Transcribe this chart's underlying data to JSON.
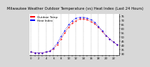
{
  "title": "Milwaukee Weather Outdoor Temperature (vs) Heat Index (Last 24 Hours)",
  "legend_temp": "Outdoor Temp",
  "legend_heat": "Heat Index",
  "background_color": "#d8d8d8",
  "plot_bg": "#ffffff",
  "temp_color": "#ff0000",
  "heat_color": "#0000ff",
  "ylim": [
    28,
    78
  ],
  "ytick_vals": [
    30,
    35,
    40,
    45,
    50,
    55,
    60,
    65,
    70,
    75
  ],
  "ytick_labels": [
    "30",
    "35",
    "40",
    "45",
    "50",
    "55",
    "60",
    "65",
    "70",
    "75"
  ],
  "hours": [
    0,
    1,
    2,
    3,
    4,
    5,
    6,
    7,
    8,
    9,
    10,
    11,
    12,
    13,
    14,
    15,
    16,
    17,
    18,
    19,
    20,
    21,
    22,
    23
  ],
  "temp_vals": [
    32,
    31,
    31,
    31,
    32,
    33,
    36,
    41,
    48,
    55,
    62,
    67,
    70,
    72,
    72,
    71,
    69,
    66,
    62,
    57,
    52,
    48,
    44,
    41
  ],
  "heat_vals": [
    32,
    31,
    31,
    31,
    32,
    33,
    37,
    43,
    51,
    58,
    65,
    70,
    73,
    74,
    74,
    73,
    71,
    68,
    63,
    58,
    52,
    48,
    44,
    41
  ],
  "grid_hours": [
    0,
    2,
    4,
    6,
    8,
    10,
    12,
    14,
    16,
    18,
    20,
    22
  ],
  "title_fontsize": 3.8,
  "tick_fontsize": 2.8,
  "legend_fontsize": 3.0,
  "markersize": 1.0,
  "linewidth": 0.6
}
